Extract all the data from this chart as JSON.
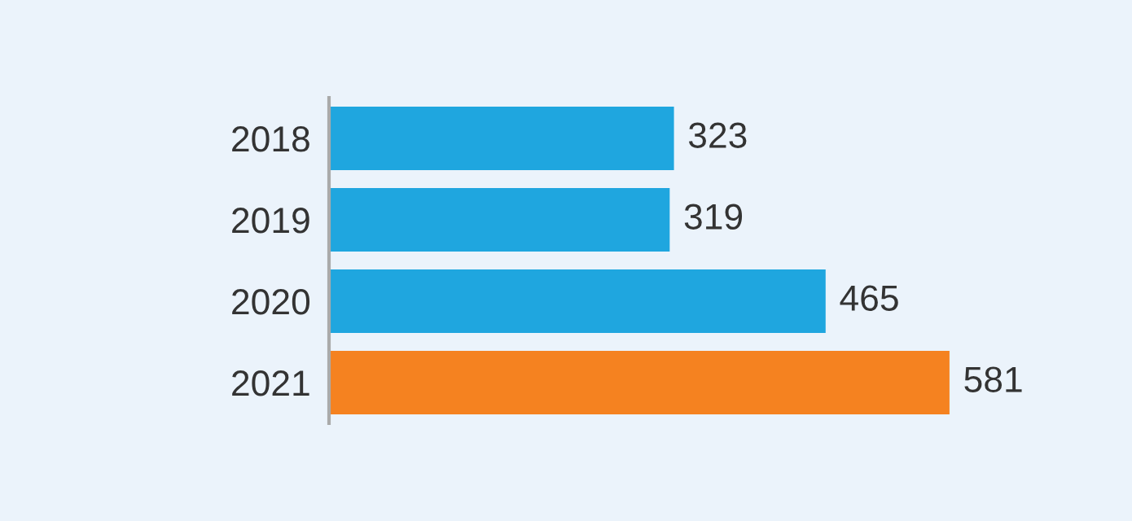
{
  "chart_data": {
    "type": "bar",
    "orientation": "horizontal",
    "categories": [
      "2018",
      "2019",
      "2020",
      "2021"
    ],
    "values": [
      323,
      319,
      465,
      581
    ],
    "colors": [
      "#1fa6df",
      "#1fa6df",
      "#1fa6df",
      "#f58220"
    ],
    "data_labels": true,
    "grid": false,
    "legend": false
  }
}
